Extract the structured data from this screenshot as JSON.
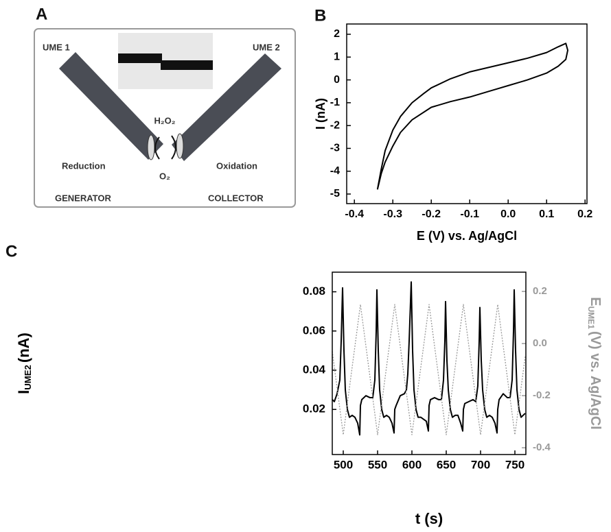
{
  "panel_labels": [
    "A",
    "B",
    "C"
  ],
  "diagram": {
    "ume1": "UME 1",
    "ume2": "UME 2",
    "species_top": "H₂O₂",
    "species_bottom": "O₂",
    "left_process": "Reduction",
    "right_process": "Oxidation",
    "left_role": "GENERATOR",
    "right_role": "COLLECTOR"
  },
  "chart_data": [
    {
      "type": "line",
      "xlabel": "E (V) vs. Ag/AgCl",
      "ylabel": "I (nA)",
      "xlim": [
        -0.42,
        0.205
      ],
      "ylim": [
        -5.42,
        2.45
      ],
      "xticks": [
        -0.4,
        -0.3,
        -0.2,
        -0.1,
        {
          "value": 0,
          "label": "0.0"
        },
        0.1,
        0.2
      ],
      "yticks": [
        -5,
        -4,
        -3,
        -2,
        -1,
        0,
        1,
        2
      ],
      "series": [
        {
          "color": "#000000",
          "x": [
            -0.34,
            -0.33,
            -0.32,
            -0.3,
            -0.28,
            -0.25,
            -0.22,
            -0.2,
            -0.15,
            -0.1,
            -0.05,
            0,
            0.05,
            0.1,
            0.13,
            0.15,
            0.155,
            0.15,
            0.13,
            0.1,
            0.05,
            0,
            -0.05,
            -0.1,
            -0.15,
            -0.2,
            -0.25,
            -0.28,
            -0.3,
            -0.32,
            -0.33,
            -0.34
          ],
          "values": [
            -4.8,
            -3.9,
            -3.1,
            -2.2,
            -1.6,
            -1.0,
            -0.6,
            -0.35,
            0.05,
            0.35,
            0.55,
            0.75,
            0.95,
            1.2,
            1.45,
            1.6,
            1.3,
            0.9,
            0.6,
            0.3,
            0.0,
            -0.25,
            -0.5,
            -0.75,
            -0.95,
            -1.2,
            -1.75,
            -2.3,
            -2.9,
            -3.6,
            -4.1,
            -4.8
          ]
        }
      ]
    },
    {
      "type": "line",
      "xlabel": "t (s)",
      "ylabel": {
        "main": "I",
        "sub": "UME2",
        "unit": "(nA)"
      },
      "y2label": {
        "main": "E",
        "sub": "UME1",
        "unit": "(V) vs. Ag/AgCl"
      },
      "xlim": [
        484,
        766
      ],
      "ylim": [
        -0.003,
        0.09
      ],
      "y2lim": [
        -0.426,
        0.274
      ],
      "xticks": [
        500,
        550,
        600,
        650,
        700,
        750
      ],
      "yticks": [
        0.02,
        0.04,
        0.06,
        0.08
      ],
      "y2ticks": [
        -0.4,
        -0.2,
        {
          "value": 0,
          "label": "0.0"
        },
        0.2
      ],
      "series": [
        {
          "color": "#000000",
          "x": [
            484,
            487,
            491,
            495,
            497,
            499,
            501,
            503,
            506,
            509,
            513,
            517,
            521,
            524,
            525,
            527,
            533,
            539,
            543,
            546,
            548,
            549,
            551,
            553,
            556,
            559,
            563,
            567,
            571,
            574,
            575,
            577,
            583,
            589,
            592,
            594,
            596,
            598,
            599,
            601,
            603,
            606,
            609,
            613,
            617,
            621,
            624,
            625,
            627,
            633,
            639,
            643,
            646,
            648,
            649,
            651,
            653,
            656,
            659,
            663,
            667,
            671,
            674,
            675,
            677,
            683,
            689,
            693,
            696,
            698,
            699,
            701,
            703,
            706,
            709,
            713,
            717,
            721,
            724,
            725,
            727,
            733,
            739,
            743,
            746,
            748,
            749,
            751,
            753,
            756,
            759,
            762,
            765
          ],
          "values": [
            0.025,
            0.024,
            0.028,
            0.035,
            0.055,
            0.082,
            0.05,
            0.03,
            0.02,
            0.016,
            0.017,
            0.016,
            0.013,
            0.007,
            0.022,
            0.025,
            0.027,
            0.026,
            0.026,
            0.035,
            0.06,
            0.081,
            0.05,
            0.03,
            0.02,
            0.016,
            0.017,
            0.016,
            0.013,
            0.008,
            0.02,
            0.022,
            0.027,
            0.028,
            0.03,
            0.038,
            0.055,
            0.075,
            0.085,
            0.05,
            0.03,
            0.02,
            0.016,
            0.016,
            0.015,
            0.014,
            0.009,
            0.022,
            0.025,
            0.026,
            0.025,
            0.025,
            0.035,
            0.055,
            0.075,
            0.045,
            0.03,
            0.02,
            0.016,
            0.017,
            0.017,
            0.013,
            0.009,
            0.02,
            0.023,
            0.024,
            0.025,
            0.024,
            0.032,
            0.055,
            0.072,
            0.045,
            0.03,
            0.02,
            0.016,
            0.017,
            0.016,
            0.013,
            0.008,
            0.02,
            0.025,
            0.028,
            0.026,
            0.026,
            0.035,
            0.06,
            0.081,
            0.05,
            0.03,
            0.02,
            0.016,
            0.017,
            0.018
          ]
        },
        {
          "color": "#999999",
          "axis": "y2",
          "style": "dotted",
          "x": [
            484,
            500,
            525,
            550,
            575,
            600,
            625,
            650,
            675,
            700,
            725,
            750,
            765
          ],
          "values": [
            -0.03,
            -0.35,
            0.15,
            -0.35,
            0.15,
            -0.35,
            0.15,
            -0.35,
            0.15,
            -0.35,
            0.15,
            -0.35,
            -0.05
          ]
        }
      ]
    }
  ]
}
